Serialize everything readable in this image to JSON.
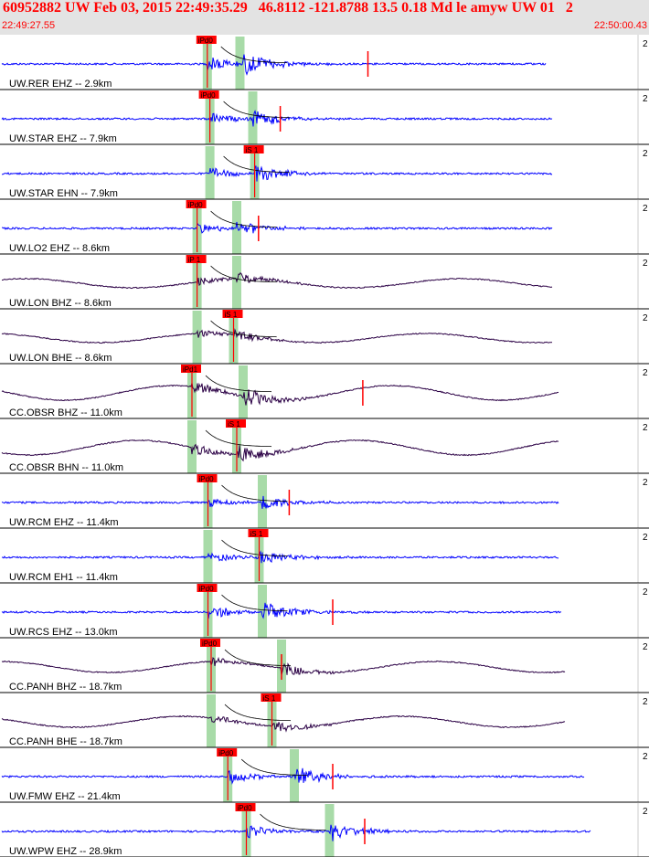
{
  "header": {
    "event_line": "60952882 UW Feb 03, 2015 22:49:35.29   46.8112 -121.8788 13.5 0.18 Md le amyw UW 01   2",
    "time_start": "22:49:27.55",
    "time_end": "22:50:00.43"
  },
  "chart_data": {
    "type": "line",
    "title": "60952882 UW Feb 03, 2015 22:49:35.29   46.8112 -121.8788 13.5 0.18 Md le amyw UW 01",
    "x_range_labels": [
      "22:49:27.55",
      "22:50:00.43"
    ],
    "panel_edge_label": "2",
    "colors": {
      "short_period": "#0000ff",
      "broadband": "#2b0045",
      "pick": "#ff0000",
      "pick_window": "#a8dba8",
      "divider": "#000000",
      "coda": "#000000"
    },
    "traces": [
      {
        "label": "UW.RER EHZ -- 2.9km",
        "type": "sp",
        "p_label": "iPd0",
        "p_rel": 0.324,
        "s_label": "",
        "s_rel": 0.375,
        "end": 0.91,
        "amp": 1.0,
        "has_p": true,
        "has_s": false,
        "extra_tick": 0.575
      },
      {
        "label": "UW.STAR EHZ -- 7.9km",
        "type": "sp",
        "p_label": "iPd0",
        "p_rel": 0.328,
        "s_label": "",
        "s_rel": 0.395,
        "end": 0.92,
        "amp": 0.7,
        "has_p": true,
        "has_s": false,
        "extra_tick": 0.438
      },
      {
        "label": "UW.STAR EHN -- 7.9km",
        "type": "sp",
        "p_label": "",
        "p_rel": 0.328,
        "s_label": "iS 1",
        "s_rel": 0.398,
        "end": 0.92,
        "amp": 0.7,
        "has_p": false,
        "has_s": true,
        "extra_tick": null
      },
      {
        "label": "UW.LO2 EHZ -- 8.6km",
        "type": "sp",
        "p_label": "iPd0",
        "p_rel": 0.308,
        "s_label": "",
        "s_rel": 0.37,
        "end": 0.92,
        "amp": 0.6,
        "has_p": true,
        "has_s": false,
        "extra_tick": 0.404
      },
      {
        "label": "UW.LON BHZ -- 8.6km",
        "type": "bb",
        "p_label": "iP 1",
        "p_rel": 0.308,
        "s_label": "",
        "s_rel": 0.37,
        "end": 0.92,
        "amp": 0.5,
        "has_p": true,
        "has_s": false,
        "extra_tick": null
      },
      {
        "label": "UW.LON BHE -- 8.6km",
        "type": "bb",
        "p_label": "",
        "p_rel": 0.308,
        "s_label": "iS 1",
        "s_rel": 0.365,
        "end": 0.92,
        "amp": 0.5,
        "has_p": false,
        "has_s": true,
        "extra_tick": null
      },
      {
        "label": "CC.OBSR BHZ -- 11.0km",
        "type": "bb",
        "p_label": "iPd1",
        "p_rel": 0.3,
        "s_label": "",
        "s_rel": 0.38,
        "end": 0.93,
        "amp": 0.8,
        "has_p": true,
        "has_s": false,
        "extra_tick": 0.567
      },
      {
        "label": "CC.OBSR BHN -- 11.0km",
        "type": "bb",
        "p_label": "",
        "p_rel": 0.3,
        "s_label": "iS 1",
        "s_rel": 0.37,
        "end": 0.93,
        "amp": 0.8,
        "has_p": false,
        "has_s": true,
        "extra_tick": null
      },
      {
        "label": "UW.RCM EHZ -- 11.4km",
        "type": "sp",
        "p_label": "iPd0",
        "p_rel": 0.325,
        "s_label": "",
        "s_rel": 0.41,
        "end": 0.93,
        "amp": 0.6,
        "has_p": true,
        "has_s": false,
        "extra_tick": 0.452
      },
      {
        "label": "UW.RCM EH1 -- 11.4km",
        "type": "sp",
        "p_label": "",
        "p_rel": 0.325,
        "s_label": "iS 1",
        "s_rel": 0.405,
        "end": 0.93,
        "amp": 0.6,
        "has_p": false,
        "has_s": true,
        "extra_tick": null
      },
      {
        "label": "UW.RCS EHZ -- 13.0km",
        "type": "sp",
        "p_label": "iPd0",
        "p_rel": 0.325,
        "s_label": "",
        "s_rel": 0.41,
        "end": 0.935,
        "amp": 0.8,
        "has_p": true,
        "has_s": false,
        "extra_tick": 0.52
      },
      {
        "label": "CC.PANH BHZ -- 18.7km",
        "type": "bb",
        "p_label": "iPd0",
        "p_rel": 0.33,
        "s_label": "",
        "s_rel": 0.44,
        "end": 0.94,
        "amp": 0.6,
        "has_p": true,
        "has_s": false,
        "extra_tick": 0.44
      },
      {
        "label": "CC.PANH BHE -- 18.7km",
        "type": "bb",
        "p_label": "",
        "p_rel": 0.33,
        "s_label": "iS 1",
        "s_rel": 0.425,
        "end": 0.94,
        "amp": 0.6,
        "has_p": false,
        "has_s": true,
        "extra_tick": null
      },
      {
        "label": "UW.FMW EHZ -- 21.4km",
        "type": "sp",
        "p_label": "iPd0",
        "p_rel": 0.356,
        "s_label": "",
        "s_rel": 0.46,
        "end": 0.97,
        "amp": 0.8,
        "has_p": true,
        "has_s": false,
        "extra_tick": 0.52
      },
      {
        "label": "UW.WPW EHZ -- 28.9km",
        "type": "sp",
        "p_label": "iPd0",
        "p_rel": 0.385,
        "s_label": "",
        "s_rel": 0.515,
        "end": 0.98,
        "amp": 0.8,
        "has_p": true,
        "has_s": false,
        "extra_tick": 0.57
      }
    ]
  }
}
